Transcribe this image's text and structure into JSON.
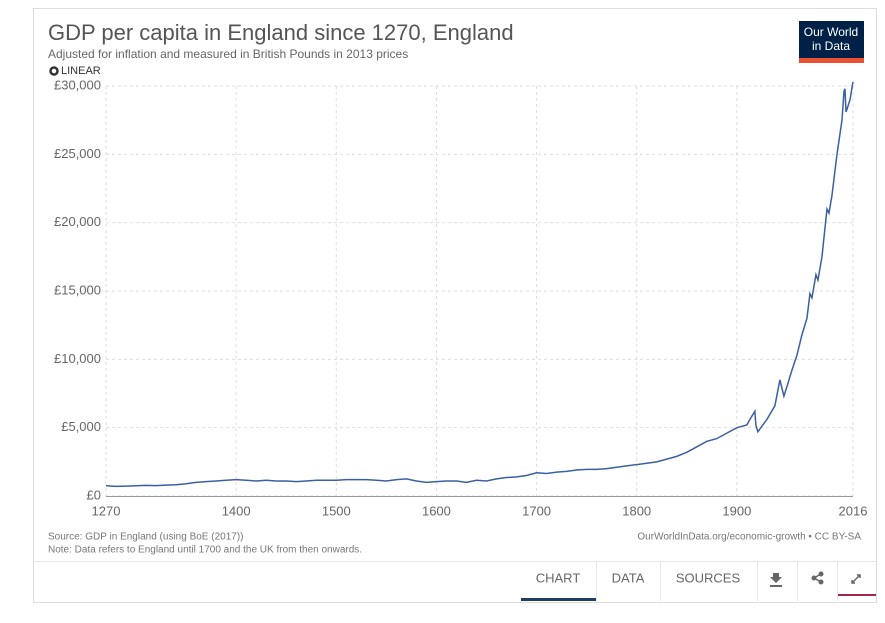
{
  "chart_data": {
    "type": "line",
    "title": "GDP per capita in England since 1270, England",
    "subtitle": "Adjusted for inflation and measured in British Pounds in 2013 prices",
    "scale_toggle": "LINEAR",
    "logo": [
      "Our World",
      "in Data"
    ],
    "source": "Source: GDP in England (using BoE (2017))",
    "note": "Note: Data refers to England until 1700 and the UK from then onwards.",
    "license": "OurWorldInData.org/economic-growth • CC BY-SA",
    "tabs": [
      "CHART",
      "DATA",
      "SOURCES"
    ],
    "color": "#3b5fa3",
    "grid": true,
    "x": [
      1270,
      1280,
      1290,
      1300,
      1310,
      1320,
      1330,
      1340,
      1350,
      1360,
      1370,
      1380,
      1390,
      1400,
      1410,
      1420,
      1430,
      1440,
      1450,
      1460,
      1470,
      1480,
      1490,
      1500,
      1510,
      1520,
      1530,
      1540,
      1550,
      1560,
      1570,
      1580,
      1590,
      1600,
      1610,
      1620,
      1630,
      1640,
      1650,
      1660,
      1670,
      1680,
      1690,
      1700,
      1710,
      1720,
      1730,
      1740,
      1750,
      1760,
      1770,
      1780,
      1790,
      1800,
      1810,
      1820,
      1830,
      1840,
      1850,
      1860,
      1870,
      1880,
      1890,
      1900,
      1910,
      1913,
      1918,
      1919,
      1921,
      1930,
      1938,
      1943,
      1947,
      1950,
      1955,
      1960,
      1965,
      1970,
      1973,
      1975,
      1979,
      1981,
      1985,
      1990,
      1992,
      1995,
      2000,
      2005,
      2007,
      2008,
      2009,
      2010,
      2013,
      2016
    ],
    "values": [
      750,
      700,
      720,
      750,
      780,
      760,
      800,
      820,
      900,
      1000,
      1050,
      1100,
      1150,
      1200,
      1150,
      1100,
      1150,
      1100,
      1100,
      1050,
      1100,
      1150,
      1150,
      1150,
      1200,
      1200,
      1200,
      1150,
      1100,
      1200,
      1250,
      1100,
      1000,
      1050,
      1100,
      1100,
      1000,
      1150,
      1100,
      1250,
      1350,
      1400,
      1500,
      1700,
      1650,
      1750,
      1800,
      1900,
      1950,
      1950,
      2000,
      2100,
      2200,
      2300,
      2400,
      2500,
      2700,
      2900,
      3200,
      3600,
      4000,
      4200,
      4600,
      5000,
      5200,
      5600,
      6200,
      5200,
      4700,
      5600,
      6600,
      8500,
      7300,
      8000,
      9200,
      10300,
      11800,
      13000,
      14800,
      14500,
      16200,
      15800,
      17500,
      21000,
      20700,
      22000,
      25000,
      27500,
      29600,
      29800,
      28100,
      28300,
      29000,
      30300
    ],
    "xlim": [
      1270,
      2016
    ],
    "xticks": [
      1270,
      1400,
      1500,
      1600,
      1700,
      1800,
      1900,
      2016
    ],
    "ylim": [
      0,
      30000
    ],
    "yticks": [
      {
        "value": 0,
        "label": "£0"
      },
      {
        "value": 5000,
        "label": "£5,000"
      },
      {
        "value": 10000,
        "label": "£10,000"
      },
      {
        "value": 15000,
        "label": "£15,000"
      },
      {
        "value": 20000,
        "label": "£20,000"
      },
      {
        "value": 25000,
        "label": "£25,000"
      },
      {
        "value": 30000,
        "label": "£30,000"
      }
    ]
  }
}
